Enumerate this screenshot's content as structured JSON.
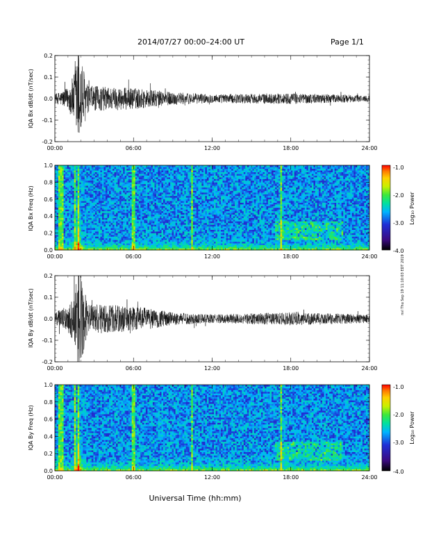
{
  "header": {
    "title": "2014/07/27  00:00–24:00 UT",
    "page": "Page 1/1"
  },
  "stamp": "nvl Thu Sep 19 11:10:03 EDT 2019",
  "xaxis_title": "Universal Time (hh:mm)",
  "colorbar": {
    "label": "Log₁₀ Power",
    "ticks": [
      "-1.0",
      "-2.0",
      "-3.0",
      "-4.0"
    ],
    "range": [
      -4.0,
      -1.0
    ],
    "colors": [
      "#000000",
      "#3b0a80",
      "#1f2fd6",
      "#00b4ff",
      "#00e0a0",
      "#3ce83c",
      "#c8f000",
      "#ffd000",
      "#ff7a00",
      "#ff0000"
    ]
  },
  "chart_data": [
    {
      "type": "line",
      "title": "",
      "ylabel": "IQA Bx dB/dt (nT/sec)",
      "xlabel": "",
      "xlim": [
        "00:00",
        "24:00"
      ],
      "ylim": [
        -0.2,
        0.2
      ],
      "xticks": [
        "00:00",
        "06:00",
        "12:00",
        "18:00",
        "24:00"
      ],
      "yticks": [
        "0.2",
        "0.1",
        "0.0",
        "-0.1",
        "-0.2"
      ],
      "series": [
        {
          "values_note_hours": [
            0,
            1,
            1.5,
            1.75,
            2,
            2.5,
            6,
            9,
            12,
            18,
            24
          ],
          "amplitude": [
            0.02,
            0.05,
            0.12,
            0.25,
            0.2,
            0.06,
            0.05,
            0.03,
            0.02,
            0.025,
            0.015
          ]
        }
      ]
    },
    {
      "type": "heatmap",
      "title": "",
      "ylabel": "IQA Bx Freq (Hz)",
      "xlim": [
        "00:00",
        "24:00"
      ],
      "ylim": [
        0.0,
        1.0
      ],
      "xticks": [
        "00:00",
        "06:00",
        "12:00",
        "18:00",
        "24:00"
      ],
      "yticks": [
        "1.0",
        "0.8",
        "0.6",
        "0.4",
        "0.2",
        "0.0"
      ]
    },
    {
      "type": "line",
      "title": "",
      "ylabel": "IQA By dB/dt (nT/sec)",
      "xlabel": "",
      "xlim": [
        "00:00",
        "24:00"
      ],
      "ylim": [
        -0.2,
        0.2
      ],
      "xticks": [
        "00:00",
        "06:00",
        "12:00",
        "18:00",
        "24:00"
      ],
      "yticks": [
        "0.2",
        "0.1",
        "0.0",
        "-0.1",
        "-0.2"
      ],
      "series": [
        {
          "values_note_hours": [
            0,
            1,
            1.5,
            1.75,
            2,
            2.5,
            6,
            9,
            12,
            18,
            24
          ],
          "amplitude": [
            0.03,
            0.06,
            0.12,
            0.25,
            0.2,
            0.07,
            0.06,
            0.03,
            0.02,
            0.03,
            0.02
          ]
        }
      ]
    },
    {
      "type": "heatmap",
      "title": "",
      "ylabel": "IQA By Freq (Hz)",
      "xlim": [
        "00:00",
        "24:00"
      ],
      "ylim": [
        0.0,
        1.0
      ],
      "xticks": [
        "00:00",
        "06:00",
        "12:00",
        "18:00",
        "24:00"
      ],
      "yticks": [
        "1.0",
        "0.8",
        "0.6",
        "0.4",
        "0.2",
        "0.0"
      ]
    }
  ]
}
